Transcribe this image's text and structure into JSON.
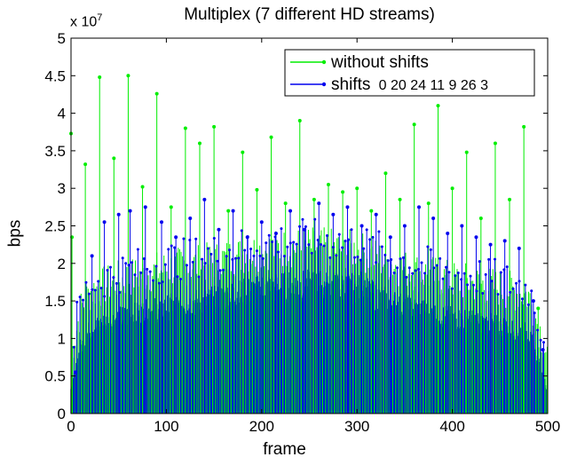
{
  "chart_data": {
    "type": "line",
    "title": "Multiplex (7 different HD streams)",
    "xlabel": "frame",
    "ylabel": "bps",
    "y_multiplier": "x 10^7",
    "xlim": [
      0,
      500
    ],
    "ylim": [
      0,
      5
    ],
    "xticks": [
      0,
      100,
      200,
      300,
      400,
      500
    ],
    "yticks": [
      0,
      0.5,
      1,
      1.5,
      2,
      2.5,
      3,
      3.5,
      4,
      4.5,
      5
    ],
    "grid": false,
    "legend_position": "top-right",
    "series": [
      {
        "name": "without shifts",
        "color": "#00ee00",
        "peaks": [
          {
            "x": 0,
            "y": 3.73
          },
          {
            "x": 1,
            "y": 2.35
          },
          {
            "x": 15,
            "y": 3.32
          },
          {
            "x": 30,
            "y": 4.48
          },
          {
            "x": 45,
            "y": 3.4
          },
          {
            "x": 60,
            "y": 4.5
          },
          {
            "x": 75,
            "y": 3.02
          },
          {
            "x": 90,
            "y": 4.26
          },
          {
            "x": 105,
            "y": 2.75
          },
          {
            "x": 120,
            "y": 3.8
          },
          {
            "x": 135,
            "y": 3.6
          },
          {
            "x": 150,
            "y": 3.82
          },
          {
            "x": 165,
            "y": 2.7
          },
          {
            "x": 180,
            "y": 3.48
          },
          {
            "x": 195,
            "y": 2.98
          },
          {
            "x": 210,
            "y": 3.68
          },
          {
            "x": 225,
            "y": 2.8
          },
          {
            "x": 240,
            "y": 3.9
          },
          {
            "x": 255,
            "y": 2.85
          },
          {
            "x": 270,
            "y": 3.05
          },
          {
            "x": 285,
            "y": 2.95
          },
          {
            "x": 300,
            "y": 3.0
          },
          {
            "x": 315,
            "y": 2.7
          },
          {
            "x": 330,
            "y": 3.2
          },
          {
            "x": 345,
            "y": 2.85
          },
          {
            "x": 360,
            "y": 3.85
          },
          {
            "x": 375,
            "y": 2.8
          },
          {
            "x": 385,
            "y": 4.1
          },
          {
            "x": 400,
            "y": 3.0
          },
          {
            "x": 415,
            "y": 3.48
          },
          {
            "x": 430,
            "y": 2.6
          },
          {
            "x": 445,
            "y": 3.6
          },
          {
            "x": 460,
            "y": 2.85
          },
          {
            "x": 475,
            "y": 3.82
          },
          {
            "x": 490,
            "y": 1.4
          }
        ]
      },
      {
        "name": "shifts  0 20 24 11 9 26 3",
        "color": "#0000ee",
        "peaks": [
          {
            "x": 5,
            "y": 0.55
          },
          {
            "x": 22,
            "y": 2.1
          },
          {
            "x": 35,
            "y": 2.55
          },
          {
            "x": 50,
            "y": 2.65
          },
          {
            "x": 62,
            "y": 2.7
          },
          {
            "x": 78,
            "y": 2.75
          },
          {
            "x": 95,
            "y": 2.55
          },
          {
            "x": 110,
            "y": 2.35
          },
          {
            "x": 125,
            "y": 2.6
          },
          {
            "x": 140,
            "y": 2.85
          },
          {
            "x": 155,
            "y": 2.45
          },
          {
            "x": 170,
            "y": 2.7
          },
          {
            "x": 185,
            "y": 2.35
          },
          {
            "x": 200,
            "y": 2.55
          },
          {
            "x": 215,
            "y": 2.4
          },
          {
            "x": 230,
            "y": 2.7
          },
          {
            "x": 245,
            "y": 2.45
          },
          {
            "x": 260,
            "y": 2.8
          },
          {
            "x": 275,
            "y": 2.65
          },
          {
            "x": 290,
            "y": 2.75
          },
          {
            "x": 305,
            "y": 2.5
          },
          {
            "x": 320,
            "y": 2.65
          },
          {
            "x": 335,
            "y": 2.35
          },
          {
            "x": 350,
            "y": 2.5
          },
          {
            "x": 365,
            "y": 2.75
          },
          {
            "x": 380,
            "y": 2.6
          },
          {
            "x": 395,
            "y": 2.4
          },
          {
            "x": 410,
            "y": 2.5
          },
          {
            "x": 425,
            "y": 2.35
          },
          {
            "x": 440,
            "y": 2.25
          },
          {
            "x": 455,
            "y": 2.3
          },
          {
            "x": 470,
            "y": 2.2
          },
          {
            "x": 485,
            "y": 1.5
          },
          {
            "x": 495,
            "y": 0.85
          }
        ],
        "bulk_envelope": [
          {
            "x": 0,
            "y": 0.3
          },
          {
            "x": 10,
            "y": 0.9
          },
          {
            "x": 20,
            "y": 1.15
          },
          {
            "x": 50,
            "y": 1.3
          },
          {
            "x": 100,
            "y": 1.45
          },
          {
            "x": 150,
            "y": 1.55
          },
          {
            "x": 200,
            "y": 1.7
          },
          {
            "x": 250,
            "y": 1.75
          },
          {
            "x": 300,
            "y": 1.7
          },
          {
            "x": 350,
            "y": 1.45
          },
          {
            "x": 400,
            "y": 1.3
          },
          {
            "x": 450,
            "y": 1.2
          },
          {
            "x": 480,
            "y": 1.1
          },
          {
            "x": 490,
            "y": 0.7
          },
          {
            "x": 500,
            "y": 0.3
          }
        ]
      }
    ]
  }
}
